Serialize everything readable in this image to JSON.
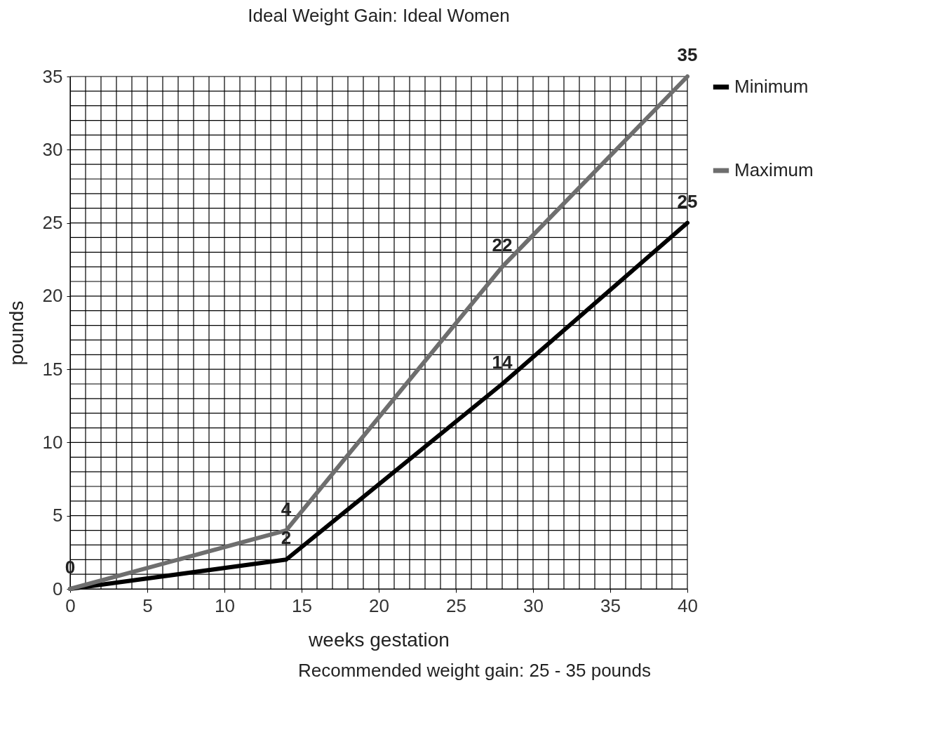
{
  "chart_data": {
    "type": "line",
    "title": "Ideal Weight Gain: Ideal Women",
    "xlabel": "weeks gestation",
    "ylabel": "pounds",
    "x": [
      0,
      14,
      28,
      40
    ],
    "series": [
      {
        "name": "Minimum",
        "color": "#000000",
        "values": [
          0,
          2,
          14,
          25
        ],
        "value_labels": [
          "0",
          "2",
          "14",
          "25"
        ]
      },
      {
        "name": "Maximum",
        "color": "#6e6e6e",
        "values": [
          0,
          4,
          22,
          35
        ],
        "value_labels": [
          null,
          "4",
          "22",
          "35"
        ]
      }
    ],
    "xlim": [
      0,
      40
    ],
    "ylim": [
      0,
      35
    ],
    "xticks": [
      0,
      {
        "value": 1,
        "label": null
      },
      {
        "value": 2,
        "label": null
      },
      {
        "value": 3,
        "label": null
      },
      {
        "value": 4,
        "label": null
      },
      5,
      {
        "value": 6,
        "label": null
      },
      {
        "value": 7,
        "label": null
      },
      {
        "value": 8,
        "label": null
      },
      {
        "value": 9,
        "label": null
      },
      10,
      {
        "value": 11,
        "label": null
      },
      {
        "value": 12,
        "label": null
      },
      {
        "value": 13,
        "label": null
      },
      {
        "value": 14,
        "label": null
      },
      15,
      {
        "value": 16,
        "label": null
      },
      {
        "value": 17,
        "label": null
      },
      {
        "value": 18,
        "label": null
      },
      {
        "value": 19,
        "label": null
      },
      20,
      {
        "value": 21,
        "label": null
      },
      {
        "value": 22,
        "label": null
      },
      {
        "value": 23,
        "label": null
      },
      {
        "value": 24,
        "label": null
      },
      25,
      {
        "value": 26,
        "label": null
      },
      {
        "value": 27,
        "label": null
      },
      {
        "value": 28,
        "label": null
      },
      {
        "value": 29,
        "label": null
      },
      30,
      {
        "value": 31,
        "label": null
      },
      {
        "value": 32,
        "label": null
      },
      {
        "value": 33,
        "label": null
      },
      {
        "value": 34,
        "label": null
      },
      35,
      {
        "value": 36,
        "label": null
      },
      {
        "value": 37,
        "label": null
      },
      {
        "value": 38,
        "label": null
      },
      {
        "value": 39,
        "label": null
      },
      40
    ],
    "yticks": [
      0,
      {
        "value": 1,
        "label": null
      },
      {
        "value": 2,
        "label": null
      },
      {
        "value": 3,
        "label": null
      },
      {
        "value": 4,
        "label": null
      },
      5,
      {
        "value": 6,
        "label": null
      },
      {
        "value": 7,
        "label": null
      },
      {
        "value": 8,
        "label": null
      },
      {
        "value": 9,
        "label": null
      },
      10,
      {
        "value": 11,
        "label": null
      },
      {
        "value": 12,
        "label": null
      },
      {
        "value": 13,
        "label": null
      },
      {
        "value": 14,
        "label": null
      },
      15,
      {
        "value": 16,
        "label": null
      },
      {
        "value": 17,
        "label": null
      },
      {
        "value": 18,
        "label": null
      },
      {
        "value": 19,
        "label": null
      },
      20,
      {
        "value": 21,
        "label": null
      },
      {
        "value": 22,
        "label": null
      },
      {
        "value": 23,
        "label": null
      },
      {
        "value": 24,
        "label": null
      },
      25,
      {
        "value": 26,
        "label": null
      },
      {
        "value": 27,
        "label": null
      },
      {
        "value": 28,
        "label": null
      },
      {
        "value": 29,
        "label": null
      },
      30,
      {
        "value": 31,
        "label": null
      },
      {
        "value": 32,
        "label": null
      },
      {
        "value": 33,
        "label": null
      },
      {
        "value": 34,
        "label": null
      },
      35
    ],
    "grid": true,
    "legend": "right",
    "marker": "none",
    "line_style": "solid",
    "annotations": [
      "Recommended weight gain: 25 - 35 pounds"
    ]
  }
}
